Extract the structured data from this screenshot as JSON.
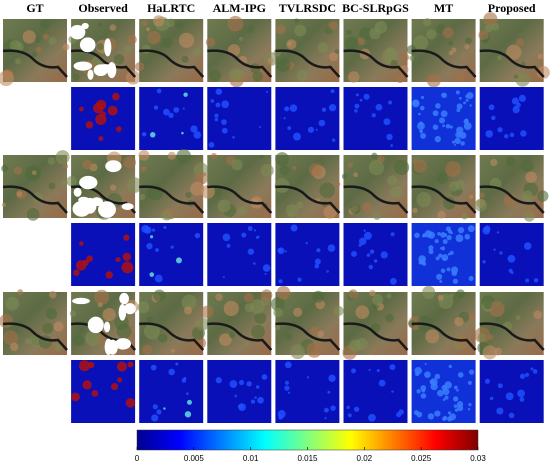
{
  "columns": [
    "GT",
    "Observed",
    "HaLRTC",
    "ALM-IPG",
    "TVLRSDC",
    "BC-SLRpGS",
    "MT",
    "Proposed"
  ],
  "colorbar": {
    "lim": [
      0,
      0.03
    ],
    "ticks": [
      0,
      0.005,
      0.01,
      0.015,
      0.02,
      0.025,
      0.03
    ]
  }
}
